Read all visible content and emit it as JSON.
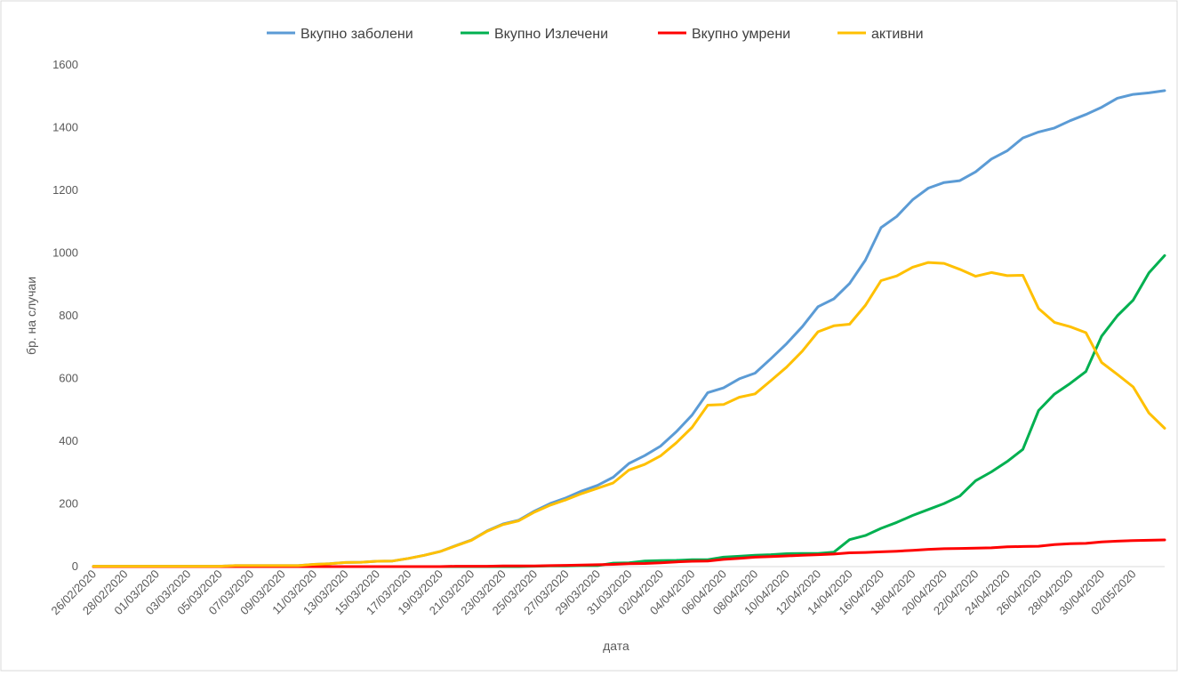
{
  "chart_data": {
    "type": "line",
    "title": "",
    "xlabel": "дата",
    "ylabel": "бр. на случаи",
    "ylim": [
      0,
      1600
    ],
    "yticks": [
      0,
      200,
      400,
      600,
      800,
      1000,
      1200,
      1400,
      1600
    ],
    "grid": false,
    "legend_position": "top",
    "x_tick_labels": [
      "26/02/2020",
      "28/02/2020",
      "01/03/2020",
      "03/03/2020",
      "05/03/2020",
      "07/03/2020",
      "09/03/2020",
      "11/03/2020",
      "13/03/2020",
      "15/03/2020",
      "17/03/2020",
      "19/03/2020",
      "21/03/2020",
      "23/03/2020",
      "25/03/2020",
      "27/03/2020",
      "29/03/2020",
      "31/03/2020",
      "02/04/2020",
      "04/04/2020",
      "06/04/2020",
      "08/04/2020",
      "10/04/2020",
      "12/04/2020",
      "14/04/2020",
      "16/04/2020",
      "18/04/2020",
      "20/04/2020",
      "22/04/2020",
      "24/04/2020",
      "26/04/2020",
      "28/04/2020",
      "30/04/2020",
      "02/05/2020"
    ],
    "x": [
      "26/02/2020",
      "27/02/2020",
      "28/02/2020",
      "29/02/2020",
      "01/03/2020",
      "02/03/2020",
      "03/03/2020",
      "04/03/2020",
      "05/03/2020",
      "06/03/2020",
      "07/03/2020",
      "08/03/2020",
      "09/03/2020",
      "10/03/2020",
      "11/03/2020",
      "12/03/2020",
      "13/03/2020",
      "14/03/2020",
      "15/03/2020",
      "16/03/2020",
      "17/03/2020",
      "18/03/2020",
      "19/03/2020",
      "20/03/2020",
      "21/03/2020",
      "22/03/2020",
      "23/03/2020",
      "24/03/2020",
      "25/03/2020",
      "26/03/2020",
      "27/03/2020",
      "28/03/2020",
      "29/03/2020",
      "30/03/2020",
      "31/03/2020",
      "01/04/2020",
      "02/04/2020",
      "03/04/2020",
      "04/04/2020",
      "05/04/2020",
      "06/04/2020",
      "07/04/2020",
      "08/04/2020",
      "09/04/2020",
      "10/04/2020",
      "11/04/2020",
      "12/04/2020",
      "13/04/2020",
      "14/04/2020",
      "15/04/2020",
      "16/04/2020",
      "17/04/2020",
      "18/04/2020",
      "19/04/2020",
      "20/04/2020",
      "21/04/2020",
      "22/04/2020",
      "23/04/2020",
      "24/04/2020",
      "25/04/2020",
      "26/04/2020",
      "27/04/2020",
      "28/04/2020",
      "29/04/2020",
      "30/04/2020",
      "01/05/2020",
      "02/05/2020",
      "03/05/2020",
      "04/05/2020"
    ],
    "series": [
      {
        "name": "Вкупно заболени",
        "color": "#5B9BD5",
        "values": [
          1,
          1,
          1,
          1,
          1,
          1,
          1,
          1,
          1,
          3,
          3,
          3,
          3,
          3,
          7,
          9,
          13,
          14,
          17,
          18,
          26,
          36,
          48,
          67,
          85,
          114,
          136,
          148,
          177,
          201,
          219,
          241,
          259,
          285,
          329,
          354,
          384,
          430,
          483,
          555,
          570,
          599,
          617,
          663,
          711,
          765,
          829,
          854,
          903,
          977,
          1081,
          1117,
          1170,
          1207,
          1225,
          1231,
          1259,
          1300,
          1326,
          1367,
          1386,
          1399,
          1422,
          1442,
          1465,
          1494,
          1506,
          1511,
          1518
        ]
      },
      {
        "name": "Вкупно Излечени",
        "color": "#00B050",
        "values": [
          0,
          0,
          0,
          0,
          0,
          0,
          0,
          0,
          0,
          0,
          0,
          0,
          0,
          0,
          0,
          0,
          0,
          0,
          0,
          0,
          0,
          0,
          0,
          0,
          0,
          0,
          0,
          0,
          1,
          2,
          2,
          3,
          3,
          11,
          12,
          18,
          19,
          20,
          22,
          22,
          30,
          33,
          36,
          38,
          41,
          42,
          42,
          46,
          86,
          99,
          122,
          141,
          163,
          182,
          201,
          225,
          274,
          302,
          335,
          374,
          498,
          550,
          584,
          622,
          735,
          800,
          850,
          937,
          992
        ]
      },
      {
        "name": "Вкупно умрени",
        "color": "#FF0000",
        "values": [
          0,
          0,
          0,
          0,
          0,
          0,
          0,
          0,
          0,
          0,
          0,
          0,
          0,
          0,
          0,
          0,
          0,
          0,
          0,
          0,
          0,
          0,
          0,
          1,
          1,
          1,
          2,
          2,
          2,
          3,
          4,
          5,
          6,
          7,
          9,
          10,
          12,
          15,
          17,
          18,
          23,
          26,
          30,
          32,
          34,
          36,
          38,
          40,
          44,
          45,
          47,
          49,
          52,
          55,
          57,
          58,
          59,
          60,
          63,
          64,
          65,
          70,
          73,
          74,
          79,
          81,
          83,
          84,
          85
        ]
      },
      {
        "name": "активни",
        "color": "#FFC000",
        "values": [
          1,
          1,
          1,
          1,
          1,
          1,
          1,
          1,
          1,
          3,
          3,
          3,
          3,
          3,
          7,
          9,
          13,
          14,
          17,
          18,
          26,
          36,
          48,
          66,
          84,
          113,
          134,
          146,
          174,
          196,
          213,
          233,
          250,
          267,
          308,
          326,
          353,
          395,
          444,
          515,
          517,
          540,
          551,
          593,
          636,
          687,
          749,
          768,
          773,
          833,
          912,
          927,
          955,
          970,
          967,
          948,
          926,
          938,
          928,
          929,
          823,
          779,
          765,
          746,
          651,
          613,
          573,
          490,
          441
        ]
      }
    ]
  }
}
